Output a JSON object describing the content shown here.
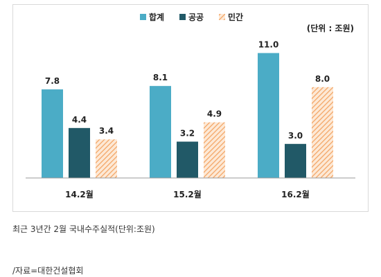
{
  "chart_data": {
    "type": "bar",
    "categories": [
      "14.2월",
      "15.2월",
      "16.2월"
    ],
    "series": [
      {
        "name": "합계",
        "values": [
          7.8,
          8.1,
          11.0
        ],
        "color": "#4bacc6",
        "pattern": "solid"
      },
      {
        "name": "공공",
        "values": [
          4.4,
          3.2,
          3.0
        ],
        "color": "#215967",
        "pattern": "solid"
      },
      {
        "name": "민간",
        "values": [
          3.4,
          4.9,
          8.0
        ],
        "color": "#f6b983",
        "pattern": "diagonal-hatch"
      }
    ],
    "data_labels": [
      [
        "7.8",
        "4.4",
        "3.4"
      ],
      [
        "8.1",
        "3.2",
        "4.9"
      ],
      [
        "11.0",
        "3.0",
        "8.0"
      ]
    ],
    "unit_note": "(단위 : 조원)",
    "ylim": [
      0,
      12
    ],
    "grid": false,
    "legend_position": "top-center"
  },
  "captions": {
    "main": "최근 3년간 2월 국내수주실적(단위:조원)",
    "source": "/자료=대한건설협회"
  }
}
